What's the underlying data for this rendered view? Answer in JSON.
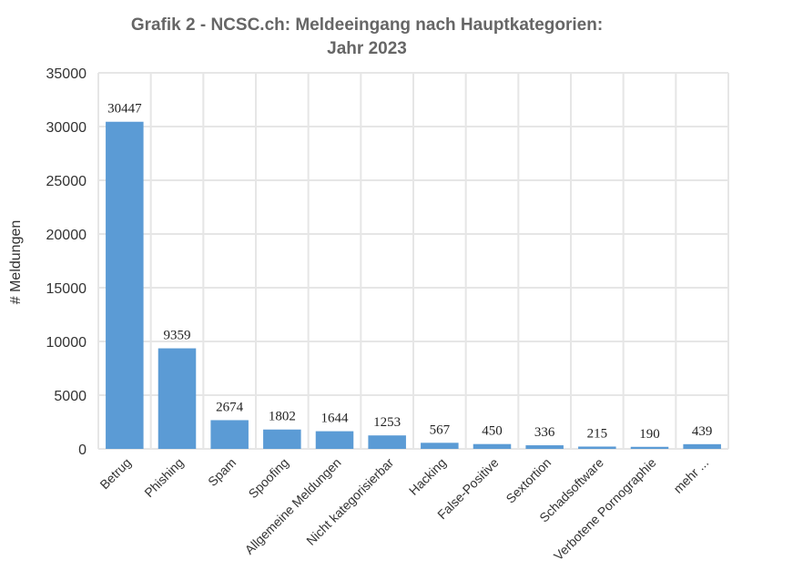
{
  "chart_data": {
    "type": "bar",
    "title_lines": [
      "Grafik 2 - NCSC.ch: Meldeeingang nach Hauptkategorien:",
      "Jahr 2023"
    ],
    "xlabel": "",
    "ylabel": "# Meldungen",
    "ylim": [
      0,
      35000
    ],
    "yticks": [
      0,
      5000,
      10000,
      15000,
      20000,
      25000,
      30000,
      35000
    ],
    "categories": [
      "Betrug",
      "Phishing",
      "Spam",
      "Spoofing",
      "Allgemeine Meldungen",
      "Nicht kategorisierbar",
      "Hacking",
      "False-Positive",
      "Sextortion",
      "Schadsoftware",
      "Verbotene Pornographie",
      "mehr ..."
    ],
    "values": [
      30447,
      9359,
      2674,
      1802,
      1644,
      1253,
      567,
      450,
      336,
      215,
      190,
      439
    ],
    "data_labels": [
      "30447",
      "9359",
      "2674",
      "1802",
      "1644",
      "1253",
      "567",
      "450",
      "336",
      "215",
      "190",
      "439"
    ],
    "bar_color": "#5b9bd5",
    "grid": true
  }
}
